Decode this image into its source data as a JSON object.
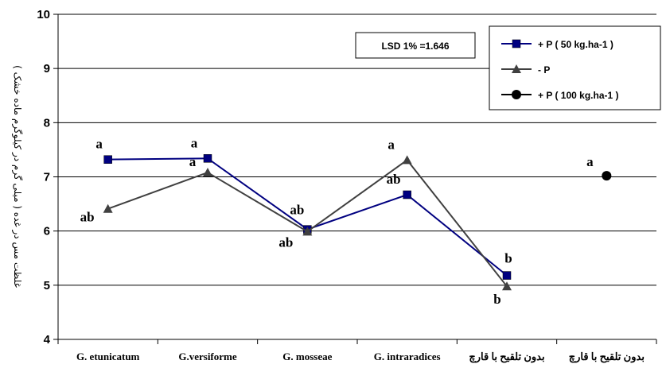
{
  "chart_data": {
    "type": "line",
    "ylabel": "غلظت مس در غده ( میلی گرم در کیلوگرم ماده خشک )",
    "ylim": [
      4,
      10
    ],
    "yticks": [
      4,
      5,
      6,
      7,
      8,
      9,
      10
    ],
    "grid": true,
    "legend_position": "top-right",
    "categories": [
      "G. etunicatum",
      "G.versiforme",
      "G. mosseae",
      "G. intraradices",
      "بدون تلقیح با قارچ",
      "بدون تلقیح با قارچ"
    ],
    "series": [
      {
        "name": "+ P ( 50 kg.ha-1 )",
        "color": "#000080",
        "marker": "square",
        "values": [
          7.32,
          7.34,
          6.03,
          6.67,
          5.18,
          null
        ],
        "labels": [
          "a",
          "a",
          "ab",
          "ab",
          "b",
          ""
        ]
      },
      {
        "name": "- P",
        "color": "#404040",
        "marker": "triangle",
        "values": [
          6.41,
          7.08,
          5.99,
          7.31,
          4.98,
          null
        ],
        "labels": [
          "ab",
          "a",
          "ab",
          "a",
          "b",
          ""
        ]
      },
      {
        "name": "+ P ( 100 kg.ha-1 )",
        "color": "#000000",
        "marker": "circle",
        "values": [
          null,
          null,
          null,
          null,
          null,
          7.02
        ],
        "labels": [
          "",
          "",
          "",
          "",
          "",
          "a"
        ]
      }
    ],
    "annotation": "LSD 1% =1.646"
  }
}
